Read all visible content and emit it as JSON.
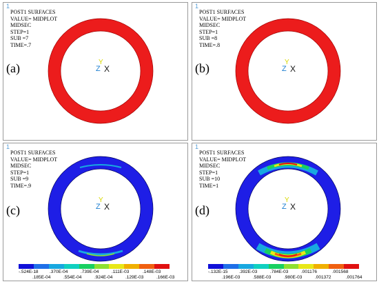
{
  "panels": [
    {
      "mark": "1",
      "title": "POST1 SURFACES",
      "value": "VALUE= MIDPLOT",
      "section": "MIDSEC",
      "step": "STEP=1",
      "sub": "SUB =7",
      "time": "TIME=.7",
      "caption": "(a)"
    },
    {
      "mark": "1",
      "title": "POST1 SURFACES",
      "value": "VALUE= MIDPLOT",
      "section": "MIDSEC",
      "step": "STEP=1",
      "sub": "SUB =8",
      "time": "TIME=.8",
      "caption": "(b)"
    },
    {
      "mark": "1",
      "title": "POST1 SURFACES",
      "value": "VALUE= MIDPLOT",
      "section": "MIDSEC",
      "step": "STEP=1",
      "sub": "SUB =9",
      "time": "TIME=.9",
      "caption": "(c)"
    },
    {
      "mark": "1",
      "title": "POST1 SURFACES",
      "value": "VALUE= MIDPLOT",
      "section": "MIDSEC",
      "step": "STEP=1",
      "sub": "SUB =10",
      "time": "TIME=1",
      "caption": "(d)"
    }
  ],
  "triad": {
    "y": "Y",
    "z": "Z",
    "x": "X"
  },
  "colors": {
    "red": "#ec1c1c",
    "blue": "#1e1ee6",
    "panel_border": "#9a9a9a"
  },
  "legend_colors": [
    "#1010d8",
    "#1f6fe8",
    "#18a8e0",
    "#10d0c0",
    "#18d060",
    "#8ee030",
    "#e8e818",
    "#f0b000",
    "#f06010",
    "#e01010"
  ],
  "legend_c": {
    "top": [
      "-.524E-18",
      ".370E-04",
      ".739E-04",
      ".111E-03",
      ".148E-03"
    ],
    "bottom": [
      ".185E-04",
      ".554E-04",
      ".924E-04",
      ".129E-03",
      ".166E-03"
    ]
  },
  "legend_d": {
    "top": [
      "-.132E-15",
      ".392E-03",
      ".784E-03",
      ".001176",
      ".001568"
    ],
    "bottom": [
      ".196E-03",
      ".588E-03",
      ".980E-03",
      ".001372",
      ".001764"
    ]
  }
}
